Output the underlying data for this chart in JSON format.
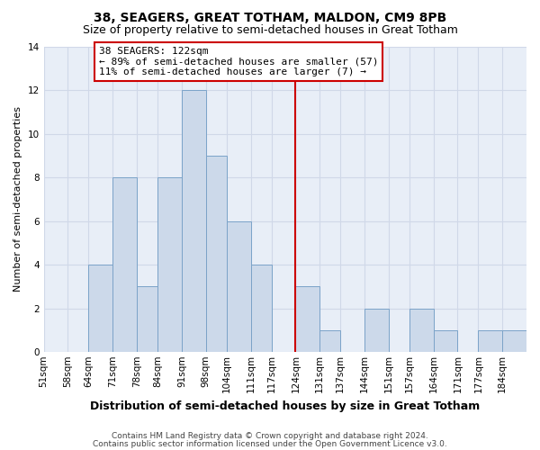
{
  "title": "38, SEAGERS, GREAT TOTHAM, MALDON, CM9 8PB",
  "subtitle": "Size of property relative to semi-detached houses in Great Totham",
  "xlabel": "Distribution of semi-detached houses by size in Great Totham",
  "ylabel": "Number of semi-detached properties",
  "bin_labels": [
    "51sqm",
    "58sqm",
    "64sqm",
    "71sqm",
    "78sqm",
    "84sqm",
    "91sqm",
    "98sqm",
    "104sqm",
    "111sqm",
    "117sqm",
    "124sqm",
    "131sqm",
    "137sqm",
    "144sqm",
    "151sqm",
    "157sqm",
    "164sqm",
    "171sqm",
    "177sqm",
    "184sqm"
  ],
  "bar_values": [
    0,
    0,
    4,
    8,
    3,
    8,
    12,
    9,
    6,
    4,
    0,
    3,
    1,
    0,
    2,
    0,
    2,
    1,
    0,
    1,
    1
  ],
  "bar_color": "#ccd9ea",
  "bar_edge_color": "#7ba3c8",
  "vline_x_index": 11,
  "vline_color": "#cc0000",
  "annotation_title": "38 SEAGERS: 122sqm",
  "annotation_line1": "← 89% of semi-detached houses are smaller (57)",
  "annotation_line2": "11% of semi-detached houses are larger (7) →",
  "annotation_box_facecolor": "#ffffff",
  "annotation_box_edgecolor": "#cc0000",
  "ylim": [
    0,
    14
  ],
  "yticks": [
    0,
    2,
    4,
    6,
    8,
    10,
    12,
    14
  ],
  "bin_edges": [
    51,
    58,
    64,
    71,
    78,
    84,
    91,
    98,
    104,
    111,
    117,
    124,
    131,
    137,
    144,
    151,
    157,
    164,
    171,
    177,
    184,
    191
  ],
  "footer_line1": "Contains HM Land Registry data © Crown copyright and database right 2024.",
  "footer_line2": "Contains public sector information licensed under the Open Government Licence v3.0.",
  "background_color": "#ffffff",
  "grid_color": "#d0d8e8",
  "plot_bg_color": "#e8eef7",
  "title_fontsize": 10,
  "subtitle_fontsize": 9,
  "xlabel_fontsize": 9,
  "ylabel_fontsize": 8,
  "tick_fontsize": 7.5,
  "footer_fontsize": 6.5,
  "annotation_fontsize": 8
}
